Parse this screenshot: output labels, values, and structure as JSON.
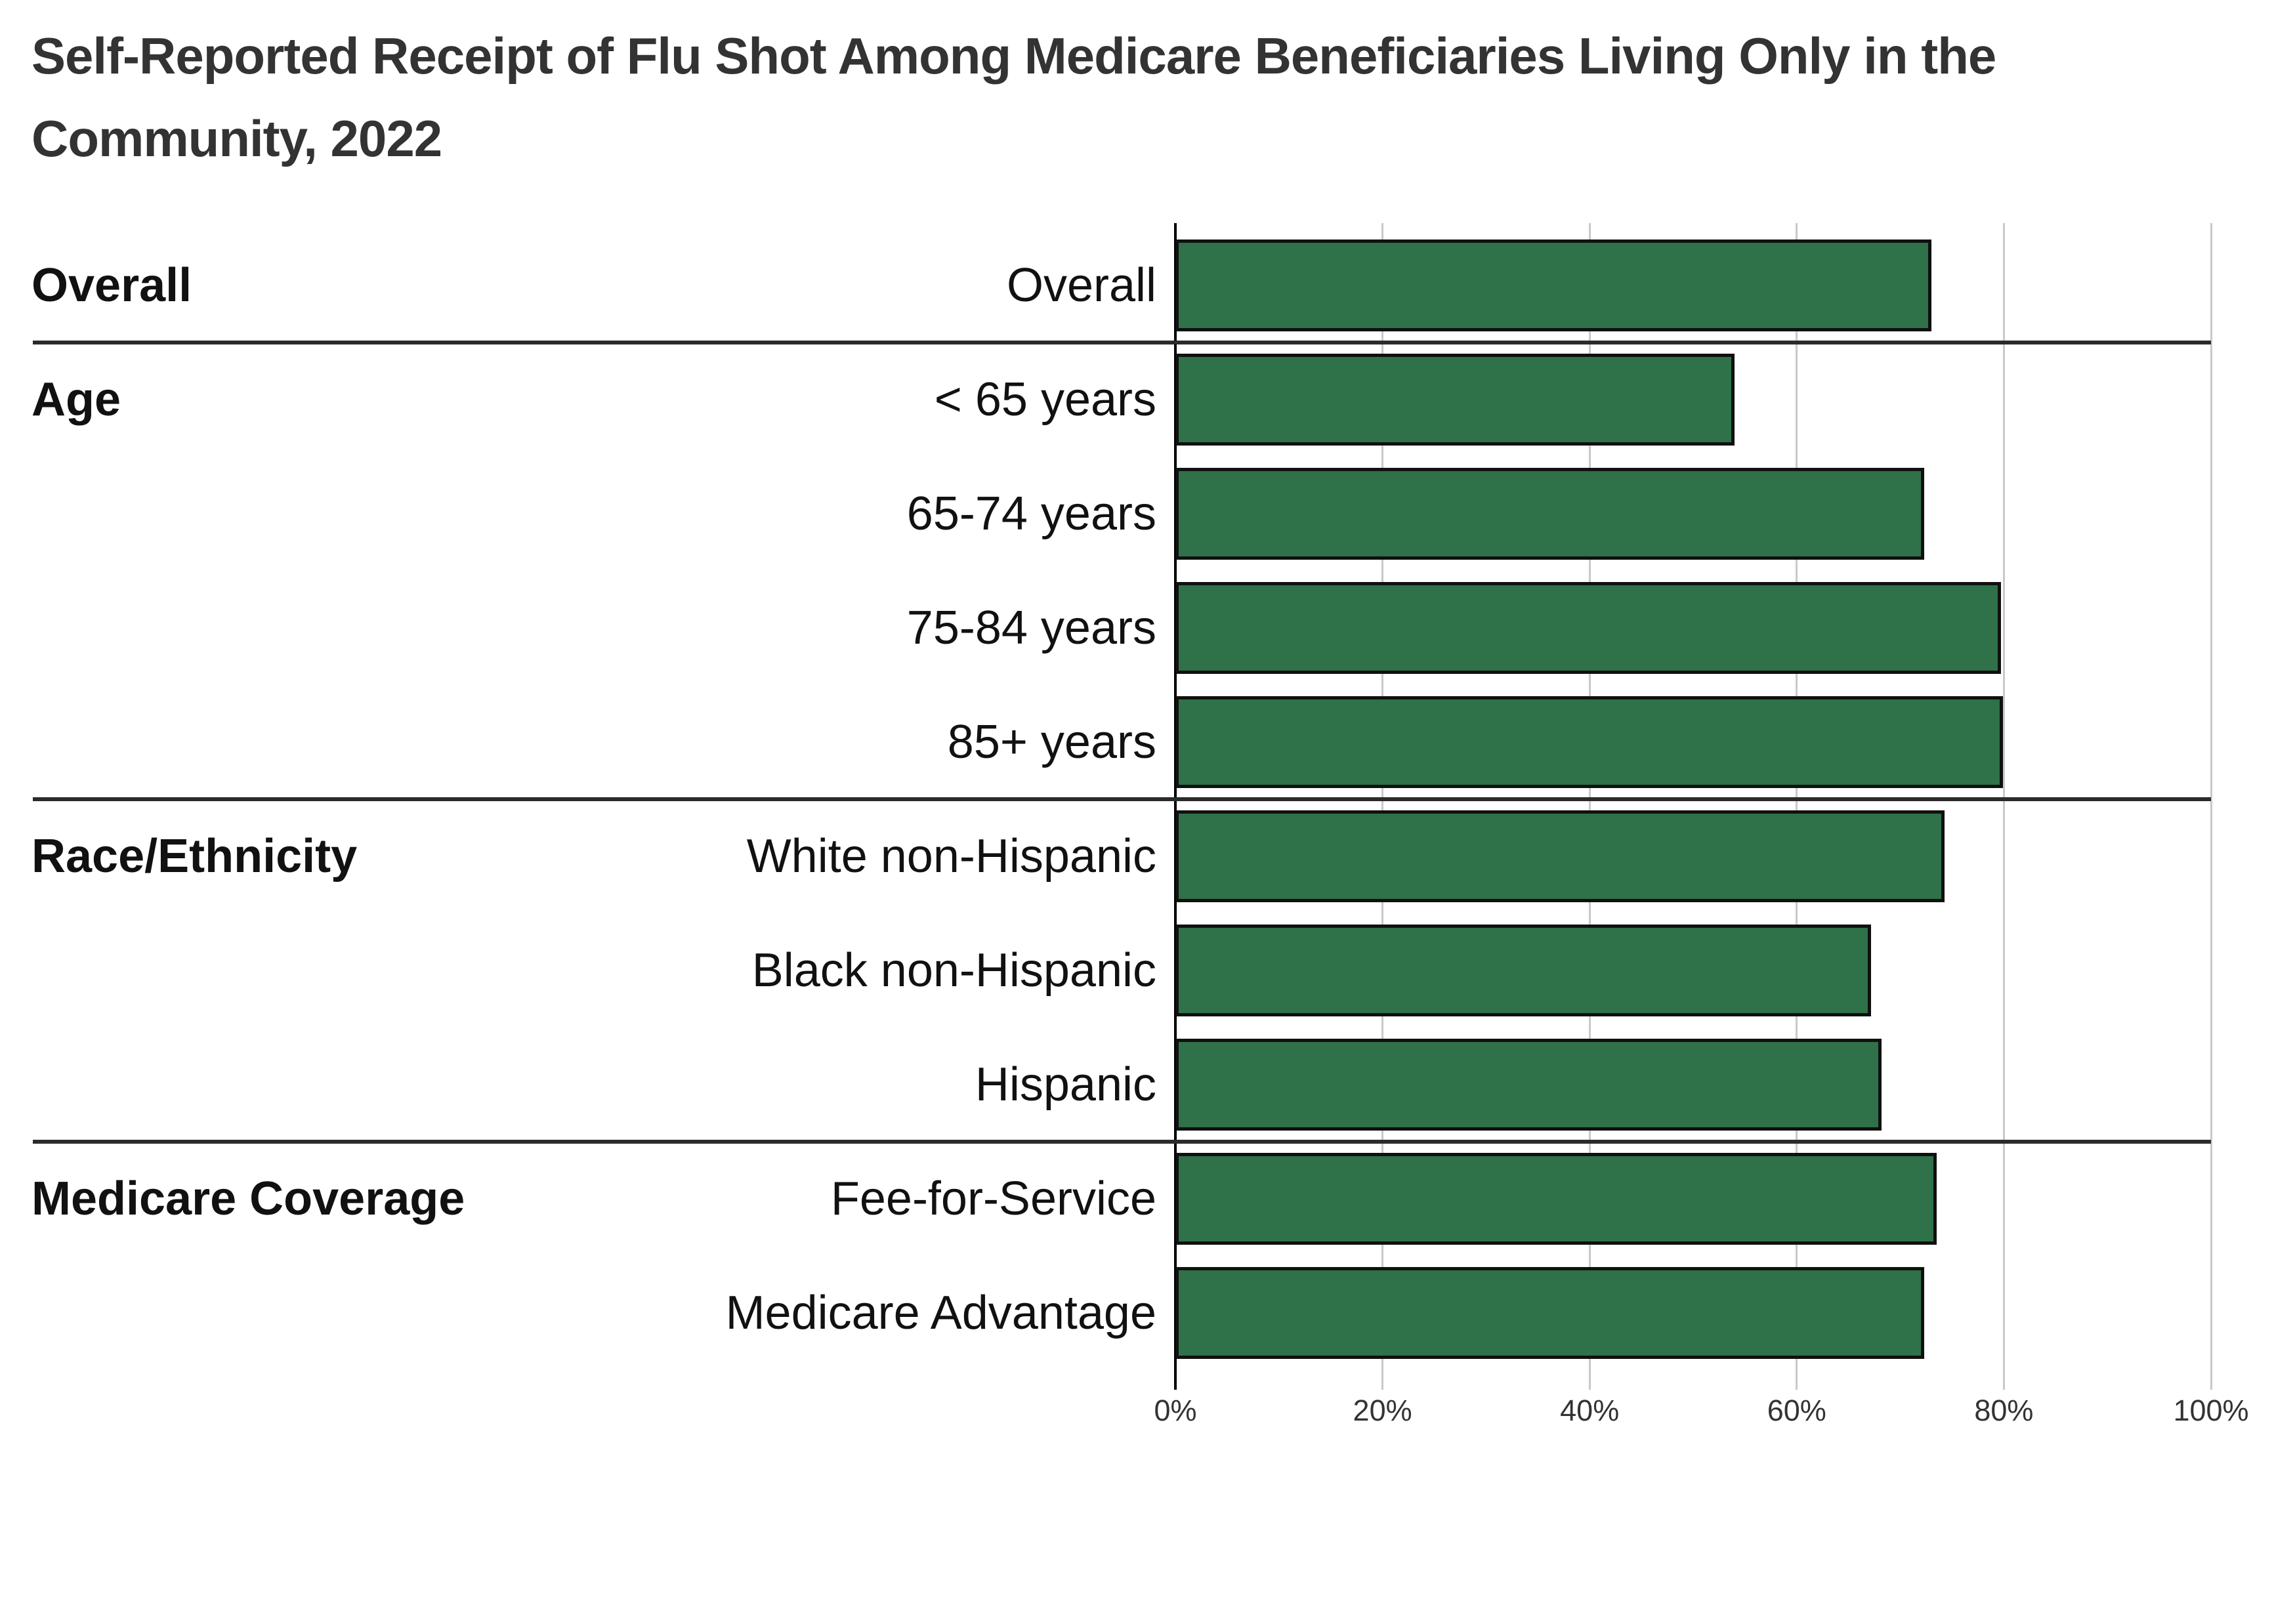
{
  "title": "Self-Reported Receipt of Flu Shot Among Medicare Beneficiaries Living Only in the Community, 2022",
  "colors": {
    "background": "#ffffff",
    "bar_fill": "#2F7148",
    "bar_border": "#101010",
    "axis_line": "#000000",
    "gridline": "#c9c9c9",
    "separator": "#2b2b2b",
    "title_text": "#333333",
    "label_text": "#111111",
    "tick_text": "#333333"
  },
  "chart_data": {
    "type": "bar",
    "orientation": "horizontal",
    "title": "Self-Reported Receipt of Flu Shot Among Medicare Beneficiaries Living Only in the Community, 2022",
    "xlabel": "",
    "ylabel": "",
    "xlim": [
      0,
      100
    ],
    "x_tick_labels": [
      "0%",
      "20%",
      "40%",
      "60%",
      "80%",
      "100%"
    ],
    "x_tick_values": [
      0,
      20,
      40,
      60,
      80,
      100
    ],
    "grid": true,
    "legend": false,
    "value_unit": "percent",
    "groups": [
      {
        "label": "Overall",
        "items": [
          {
            "label": "Overall",
            "value": 73.0
          }
        ]
      },
      {
        "label": "Age",
        "items": [
          {
            "label": "< 65 years",
            "value": 54.0
          },
          {
            "label": "65-74 years",
            "value": 72.3
          },
          {
            "label": "75-84 years",
            "value": 79.7
          },
          {
            "label": "85+ years",
            "value": 79.9
          }
        ]
      },
      {
        "label": "Race/Ethnicity",
        "items": [
          {
            "label": "White non-Hispanic",
            "value": 74.3
          },
          {
            "label": "Black non-Hispanic",
            "value": 67.2
          },
          {
            "label": "Hispanic",
            "value": 68.2
          }
        ]
      },
      {
        "label": "Medicare Coverage",
        "items": [
          {
            "label": "Fee-for-Service",
            "value": 73.5
          },
          {
            "label": "Medicare Advantage",
            "value": 72.3
          }
        ]
      }
    ]
  }
}
